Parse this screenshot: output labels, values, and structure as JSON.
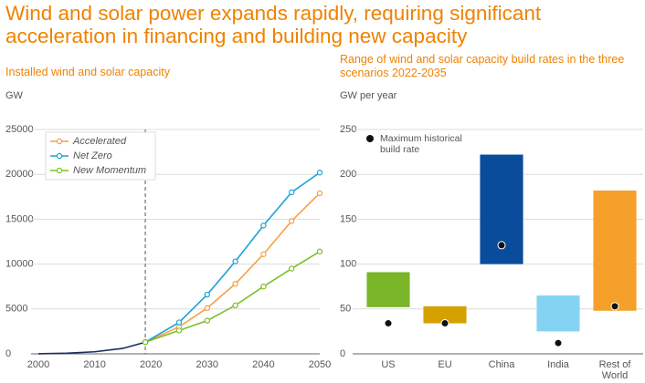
{
  "title": "Wind and solar power expands rapidly, requiring significant acceleration in financing and building new capacity",
  "chart_data": [
    {
      "type": "line",
      "title": "Installed wind and solar capacity",
      "y_label": "GW",
      "xlim": [
        2000,
        2050
      ],
      "xticks": [
        2000,
        2010,
        2020,
        2030,
        2040,
        2050
      ],
      "ylim": [
        0,
        25000
      ],
      "yticks": [
        0,
        5000,
        10000,
        15000,
        20000,
        25000
      ],
      "grid": true,
      "vline": 2019,
      "legend": "upper left",
      "series": [
        {
          "color": "#1f2a5c",
          "marker": false,
          "x": [
            2000,
            2005,
            2010,
            2015,
            2019
          ],
          "values": [
            10,
            70,
            230,
            600,
            1300
          ]
        },
        {
          "name": "Accelerated",
          "color": "#f5a040",
          "marker": true,
          "x": [
            2019,
            2025,
            2030,
            2035,
            2040,
            2045,
            2050
          ],
          "values": [
            1300,
            3000,
            5100,
            7800,
            11100,
            14800,
            17900
          ]
        },
        {
          "name": "Net Zero",
          "color": "#1ba3d6",
          "marker": true,
          "x": [
            2019,
            2025,
            2030,
            2035,
            2040,
            2045,
            2050
          ],
          "values": [
            1300,
            3500,
            6600,
            10300,
            14300,
            18000,
            20200
          ]
        },
        {
          "name": "New Momentum",
          "color": "#7bbf2a",
          "marker": true,
          "x": [
            2019,
            2025,
            2030,
            2035,
            2040,
            2045,
            2050
          ],
          "values": [
            1300,
            2600,
            3700,
            5400,
            7500,
            9500,
            11400
          ]
        }
      ]
    },
    {
      "type": "range",
      "title": "Range of wind and solar capacity build rates in the three scenarios 2022-2035",
      "y_label": "GW per year",
      "categories": [
        "US",
        "EU",
        "China",
        "India",
        "Rest of World"
      ],
      "low": [
        52,
        34,
        100,
        25,
        48
      ],
      "high": [
        91,
        53,
        222,
        65,
        182
      ],
      "colors": [
        "#7ab52a",
        "#d6a000",
        "#0a4c9c",
        "#84d3f3",
        "#f5a02a"
      ],
      "ylim": [
        0,
        250
      ],
      "yticks": [
        0,
        50,
        100,
        150,
        200,
        250
      ],
      "grid": true,
      "legend": "upper left",
      "series": [
        {
          "name": "Maximum historical build rate",
          "color": "#111111",
          "values": [
            34,
            34,
            121,
            12,
            53
          ]
        }
      ]
    }
  ]
}
